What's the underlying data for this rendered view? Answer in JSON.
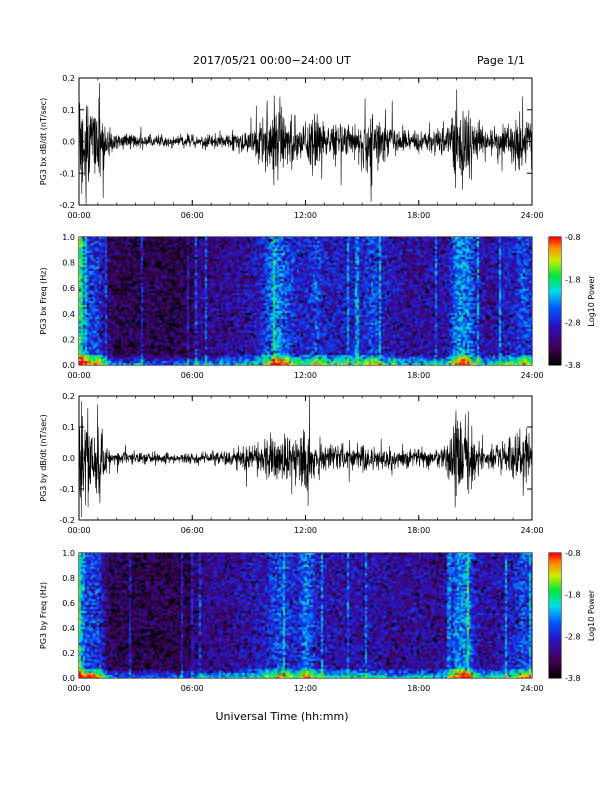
{
  "header": {
    "title": "2017/05/21  00:00−24:00 UT",
    "page": "Page 1/1"
  },
  "xlabel": "Universal Time (hh:mm)",
  "chart_data": [
    {
      "type": "line",
      "ylabel": "PG3 bx dB/dt (nT/sec)",
      "xlim": [
        0,
        24
      ],
      "ylim": [
        -0.2,
        0.2
      ],
      "xticks": [
        "00:00",
        "06:00",
        "12:00",
        "18:00",
        "24:00"
      ],
      "yticks": [
        "-0.2",
        "-0.1",
        "0.0",
        "0.1",
        "0.2"
      ],
      "envelope": {
        "hours": [
          0,
          0.5,
          1,
          1.5,
          2,
          3,
          4,
          5,
          6,
          7,
          8,
          9,
          9.5,
          10,
          10.5,
          11,
          11.5,
          12,
          12.5,
          13,
          14,
          15,
          15.5,
          16,
          17,
          18,
          19,
          19.5,
          20,
          20.5,
          21,
          21.5,
          22,
          23,
          23.5,
          24
        ],
        "amplitude": [
          0.2,
          0.2,
          0.2,
          0.06,
          0.04,
          0.035,
          0.035,
          0.03,
          0.03,
          0.03,
          0.04,
          0.06,
          0.08,
          0.15,
          0.2,
          0.15,
          0.1,
          0.09,
          0.15,
          0.09,
          0.09,
          0.1,
          0.15,
          0.09,
          0.06,
          0.05,
          0.05,
          0.07,
          0.2,
          0.2,
          0.1,
          0.05,
          0.07,
          0.1,
          0.15,
          0.1
        ]
      }
    },
    {
      "type": "heatmap",
      "ylabel": "PG3 bx Freq (Hz)",
      "xlim": [
        0,
        24
      ],
      "ylim": [
        0,
        1.0
      ],
      "xticks": [
        "00:00",
        "06:00",
        "12:00",
        "18:00",
        "24:00"
      ],
      "yticks": [
        "0.0",
        "0.2",
        "0.4",
        "0.6",
        "0.8",
        "1.0"
      ],
      "colorbar": {
        "label": "Log10 Power",
        "range": [
          -3.8,
          -0.8
        ],
        "ticks": [
          "-0.8",
          "-1.8",
          "-2.8",
          "-3.8"
        ]
      },
      "dark_interval_hours": [
        0.3,
        6
      ]
    },
    {
      "type": "line",
      "ylabel": "PG3 by dB/dt (nT/sec)",
      "xlim": [
        0,
        24
      ],
      "ylim": [
        -0.2,
        0.2
      ],
      "xticks": [
        "00:00",
        "06:00",
        "12:00",
        "18:00",
        "24:00"
      ],
      "yticks": [
        "-0.2",
        "-0.1",
        "0.0",
        "0.1",
        "0.2"
      ],
      "envelope": {
        "hours": [
          0,
          0.5,
          1,
          1.5,
          2,
          3,
          4,
          5,
          6,
          7,
          8,
          9,
          9.5,
          10,
          10.5,
          11,
          11.5,
          12,
          12.5,
          13,
          14,
          15,
          15.5,
          16,
          17,
          18,
          19,
          19.5,
          20,
          20.5,
          21,
          21.5,
          22,
          23,
          23.5,
          24
        ],
        "amplitude": [
          0.2,
          0.2,
          0.2,
          0.05,
          0.035,
          0.03,
          0.03,
          0.025,
          0.025,
          0.03,
          0.04,
          0.06,
          0.07,
          0.1,
          0.15,
          0.12,
          0.09,
          0.2,
          0.1,
          0.07,
          0.06,
          0.06,
          0.06,
          0.05,
          0.04,
          0.05,
          0.04,
          0.06,
          0.2,
          0.2,
          0.08,
          0.05,
          0.06,
          0.1,
          0.15,
          0.1
        ]
      }
    },
    {
      "type": "heatmap",
      "ylabel": "PG3 by Freq (Hz)",
      "xlim": [
        0,
        24
      ],
      "ylim": [
        0,
        1.0
      ],
      "xticks": [
        "00:00",
        "06:00",
        "12:00",
        "18:00",
        "24:00"
      ],
      "yticks": [
        "0.0",
        "0.2",
        "0.4",
        "0.6",
        "0.8",
        "1.0"
      ],
      "colorbar": {
        "label": "Log10 Power",
        "range": [
          -3.8,
          -0.8
        ],
        "ticks": [
          "-0.8",
          "-1.8",
          "-2.8",
          "-3.8"
        ]
      },
      "dark_interval_hours": [
        0.3,
        6
      ]
    }
  ]
}
